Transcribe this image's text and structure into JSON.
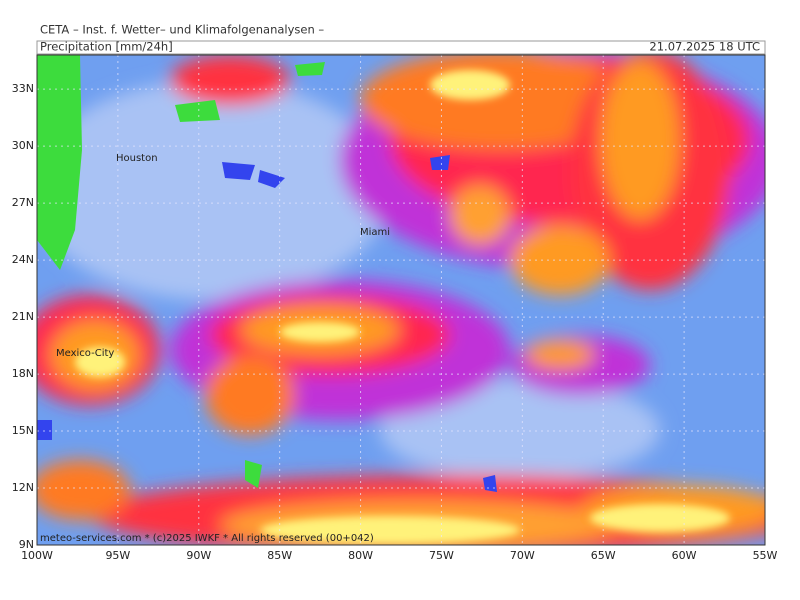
{
  "header": {
    "title": "CETA – Inst. f. Wetter– und Klimafolgenanalysen –",
    "product": "Precipitation [mm/24h]",
    "valid": "21.07.2025 18 UTC"
  },
  "map": {
    "lon_range": [
      -100,
      -55
    ],
    "lat_range": [
      9,
      34.8
    ],
    "lat_ticks": [
      {
        "value": 33,
        "label": "33N"
      },
      {
        "value": 30,
        "label": "30N"
      },
      {
        "value": 27,
        "label": "27N"
      },
      {
        "value": 24,
        "label": "24N"
      },
      {
        "value": 21,
        "label": "21N"
      },
      {
        "value": 18,
        "label": "18N"
      },
      {
        "value": 15,
        "label": "15N"
      },
      {
        "value": 12,
        "label": "12N"
      },
      {
        "value": 9,
        "label": "9N"
      }
    ],
    "lon_ticks": [
      {
        "value": -100,
        "label": "100W"
      },
      {
        "value": -95,
        "label": "95W"
      },
      {
        "value": -90,
        "label": "90W"
      },
      {
        "value": -85,
        "label": "85W"
      },
      {
        "value": -80,
        "label": "80W"
      },
      {
        "value": -75,
        "label": "75W"
      },
      {
        "value": -70,
        "label": "70W"
      },
      {
        "value": -65,
        "label": "65W"
      },
      {
        "value": -60,
        "label": "60W"
      },
      {
        "value": -55,
        "label": "55W"
      }
    ],
    "cities": [
      "Houston",
      "Miami",
      "Mexico-City"
    ]
  },
  "footer": {
    "credit": "meteo-services.com * (c)2025 IWKF * All rights reserved (00+042)"
  }
}
